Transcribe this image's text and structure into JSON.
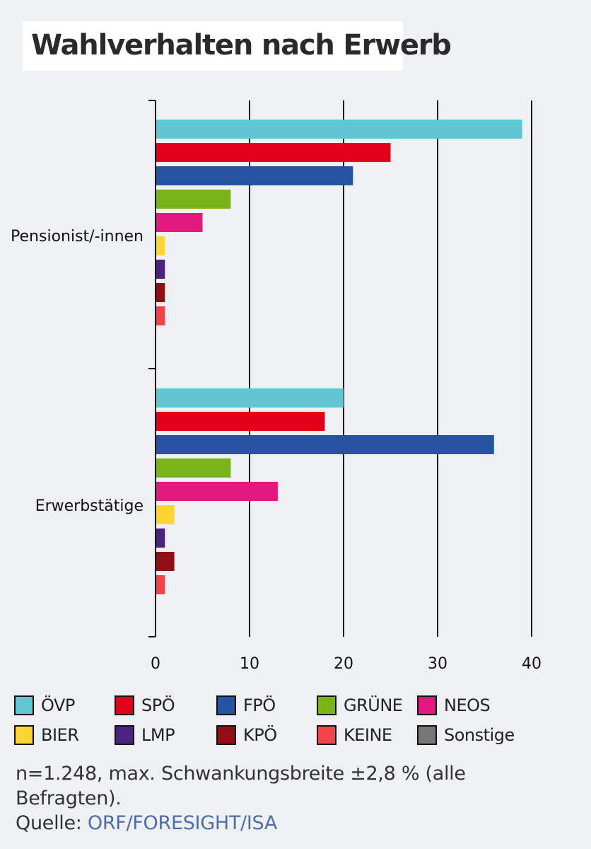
{
  "title": "Wahlverhalten nach Erwerb",
  "chart_data": {
    "type": "bar",
    "orientation": "horizontal",
    "categories": [
      "Pensionist/-innen",
      "Erwerbstätige"
    ],
    "series": [
      {
        "name": "ÖVP",
        "color": "#62c5d4",
        "values": [
          39,
          20
        ]
      },
      {
        "name": "SPÖ",
        "color": "#e2001a",
        "values": [
          25,
          18
        ]
      },
      {
        "name": "FPÖ",
        "color": "#2553a0",
        "values": [
          21,
          36
        ]
      },
      {
        "name": "GRÜNE",
        "color": "#7ab317",
        "values": [
          8,
          8
        ]
      },
      {
        "name": "NEOS",
        "color": "#e3187d",
        "values": [
          5,
          13
        ]
      },
      {
        "name": "BIER",
        "color": "#fcd434",
        "values": [
          1,
          2
        ]
      },
      {
        "name": "LMP",
        "color": "#4a2380",
        "values": [
          1,
          1
        ]
      },
      {
        "name": "KPÖ",
        "color": "#8f0f14",
        "values": [
          1,
          2
        ]
      },
      {
        "name": "KEINE",
        "color": "#f24349",
        "values": [
          1,
          1
        ]
      },
      {
        "name": "Sonstige",
        "color": "#777777",
        "values": [
          0,
          0
        ]
      }
    ],
    "xlim": [
      0,
      40
    ],
    "xticks": [
      0,
      10,
      20,
      30,
      40
    ],
    "grid": true,
    "legend_position": "bottom"
  },
  "footer": {
    "note": "n=1.248, max. Schwankungsbreite ±2,8 % (alle Befragten).",
    "source_label": "Quelle: ",
    "source_link": "ORF/FORESIGHT/ISA"
  }
}
